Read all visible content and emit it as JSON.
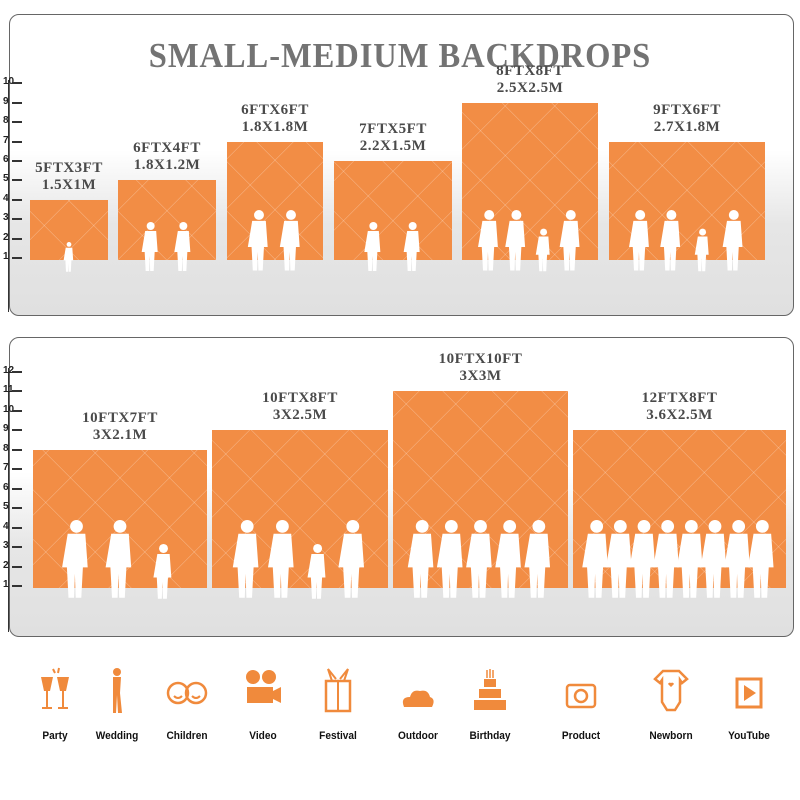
{
  "title": "SMALL-MEDIUM BACKDROPS",
  "top_panel": {
    "scale": [
      "1",
      "2",
      "3",
      "4",
      "5",
      "6",
      "7",
      "8",
      "9",
      "10"
    ],
    "sizes": [
      {
        "ft": "5FTX3FT",
        "m": "1.5X1M"
      },
      {
        "ft": "6FTX4FT",
        "m": "1.8X1.2M"
      },
      {
        "ft": "6FTX6FT",
        "m": "1.8X1.8M"
      },
      {
        "ft": "7FTX5FT",
        "m": "2.2X1.5M"
      },
      {
        "ft": "8FTX8FT",
        "m": "2.5X2.5M"
      },
      {
        "ft": "9FTX6FT",
        "m": "2.7X1.8M"
      }
    ]
  },
  "bottom_panel": {
    "scale": [
      "1",
      "2",
      "3",
      "4",
      "5",
      "6",
      "7",
      "8",
      "9",
      "10",
      "11",
      "12"
    ],
    "sizes": [
      {
        "ft": "10FTX7FT",
        "m": "3X2.1M"
      },
      {
        "ft": "10FTX8FT",
        "m": "3X2.5M"
      },
      {
        "ft": "10FTX10FT",
        "m": "3X3M"
      },
      {
        "ft": "12FTX8FT",
        "m": "3.6X2.5M"
      }
    ]
  },
  "colors": {
    "backdrop": "#f28d45",
    "title": "#737373",
    "icon": "#f08a3c"
  },
  "uses": [
    {
      "label": "Party",
      "icon": "champagne-glasses-icon"
    },
    {
      "label": "Wedding",
      "icon": "wedding-couple-icon"
    },
    {
      "label": "Children",
      "icon": "children-faces-icon"
    },
    {
      "label": "Video",
      "icon": "movie-camera-icon"
    },
    {
      "label": "Festival",
      "icon": "gift-box-icon"
    },
    {
      "label": "Outdoor",
      "icon": "cloud-icon"
    },
    {
      "label": "Birthday",
      "icon": "birthday-cake-icon"
    },
    {
      "label": "Product",
      "icon": "camera-icon"
    },
    {
      "label": "Newborn",
      "icon": "baby-onesie-icon"
    },
    {
      "label": "YouTube",
      "icon": "play-icon"
    }
  ]
}
